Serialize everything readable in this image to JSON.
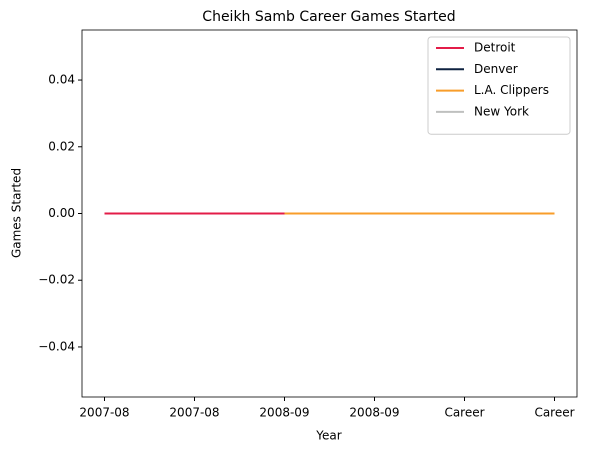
{
  "chart_data": {
    "type": "line",
    "title": "Cheikh Samb Career Games Started",
    "x_label": "Year",
    "y_label": "Games Started",
    "categories": [
      "2007-08",
      "2007-08",
      "2008-09",
      "2008-09",
      "Career",
      "Career"
    ],
    "series": [
      {
        "name": "Detroit",
        "color": "#e31c48",
        "values": [
          0,
          0,
          0,
          null,
          null,
          null
        ]
      },
      {
        "name": "Denver",
        "color": "#0e2240",
        "values": [
          null,
          null,
          null,
          null,
          null,
          null
        ]
      },
      {
        "name": "L.A. Clippers",
        "color": "#f89d2a",
        "values": [
          null,
          null,
          0,
          0,
          0,
          0
        ]
      },
      {
        "name": "New York",
        "color": "#bfc0bf",
        "values": [
          null,
          null,
          null,
          null,
          null,
          null
        ]
      }
    ],
    "ylim": [
      -0.055,
      0.055
    ],
    "yticks": [
      {
        "value": -0.04,
        "label": "−0.04"
      },
      {
        "value": -0.02,
        "label": "−0.02"
      },
      {
        "value": 0,
        "label": "0.00"
      },
      {
        "value": 0.02,
        "label": "0.02"
      },
      {
        "value": 0.04,
        "label": "0.04"
      }
    ],
    "legend": "upper right",
    "grid": false
  }
}
